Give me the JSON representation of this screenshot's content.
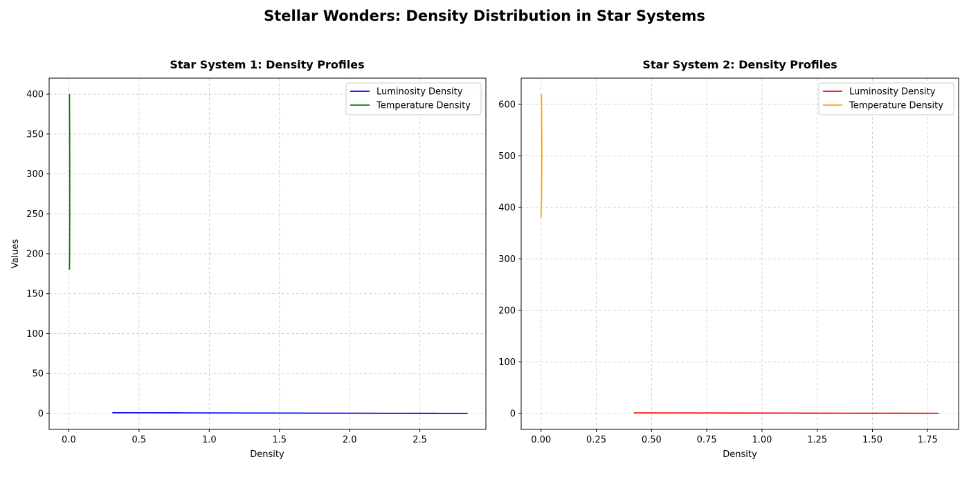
{
  "figure_title": "Stellar Wonders: Density Distribution in Star Systems",
  "chart_data": [
    {
      "type": "line",
      "title": "Star System 1: Density Profiles",
      "xlabel": "Density",
      "ylabel": "Values",
      "xlim": [
        -0.14,
        2.97
      ],
      "ylim": [
        -20,
        420
      ],
      "xticks": [
        "0.0",
        "0.5",
        "1.0",
        "1.5",
        "2.0",
        "2.5"
      ],
      "xtick_values": [
        0,
        0.5,
        1.0,
        1.5,
        2.0,
        2.5
      ],
      "yticks": [
        "0",
        "50",
        "100",
        "150",
        "200",
        "250",
        "300",
        "350",
        "400"
      ],
      "ytick_values": [
        0,
        50,
        100,
        150,
        200,
        250,
        300,
        350,
        400
      ],
      "grid": true,
      "legend_position": "upper-right",
      "series": [
        {
          "name": "Luminosity Density",
          "color": "#0000ff",
          "points": [
            [
              0.31,
              0.9
            ],
            [
              0.55,
              0.8
            ],
            [
              0.8,
              0.7
            ],
            [
              1.1,
              0.55
            ],
            [
              1.4,
              0.45
            ],
            [
              1.7,
              0.35
            ],
            [
              2.0,
              0.25
            ],
            [
              2.3,
              0.15
            ],
            [
              2.6,
              0.07
            ],
            [
              2.84,
              0.02
            ]
          ]
        },
        {
          "name": "Temperature Density",
          "color": "#008000",
          "points": [
            [
              0.0048,
              180
            ],
            [
              0.0058,
              200
            ],
            [
              0.0065,
              230
            ],
            [
              0.0068,
              260
            ],
            [
              0.0068,
              290
            ],
            [
              0.0066,
              320
            ],
            [
              0.0061,
              350
            ],
            [
              0.0055,
              375
            ],
            [
              0.0048,
              400
            ]
          ]
        }
      ]
    },
    {
      "type": "line",
      "title": "Star System 2: Density Profiles",
      "xlabel": "Density",
      "ylabel": "",
      "xlim": [
        -0.09,
        1.89
      ],
      "ylim": [
        -31,
        651
      ],
      "xticks": [
        "0.00",
        "0.25",
        "0.50",
        "0.75",
        "1.00",
        "1.25",
        "1.50",
        "1.75"
      ],
      "xtick_values": [
        0,
        0.25,
        0.5,
        0.75,
        1.0,
        1.25,
        1.5,
        1.75
      ],
      "yticks": [
        "0",
        "100",
        "200",
        "300",
        "400",
        "500",
        "600"
      ],
      "ytick_values": [
        0,
        100,
        200,
        300,
        400,
        500,
        600
      ],
      "grid": true,
      "legend_position": "upper-right",
      "series": [
        {
          "name": "Luminosity Density",
          "color": "#ff0000",
          "points": [
            [
              0.42,
              1.0
            ],
            [
              0.6,
              0.9
            ],
            [
              0.8,
              0.8
            ],
            [
              1.0,
              0.65
            ],
            [
              1.2,
              0.5
            ],
            [
              1.4,
              0.4
            ],
            [
              1.6,
              0.3
            ],
            [
              1.8,
              0.2
            ]
          ]
        },
        {
          "name": "Temperature Density",
          "color": "#ffa500",
          "points": [
            [
              0.0,
              380
            ],
            [
              0.002,
              420
            ],
            [
              0.003,
              460
            ],
            [
              0.0035,
              500
            ],
            [
              0.0033,
              540
            ],
            [
              0.0026,
              580
            ],
            [
              0.0015,
              620
            ]
          ]
        }
      ]
    }
  ]
}
